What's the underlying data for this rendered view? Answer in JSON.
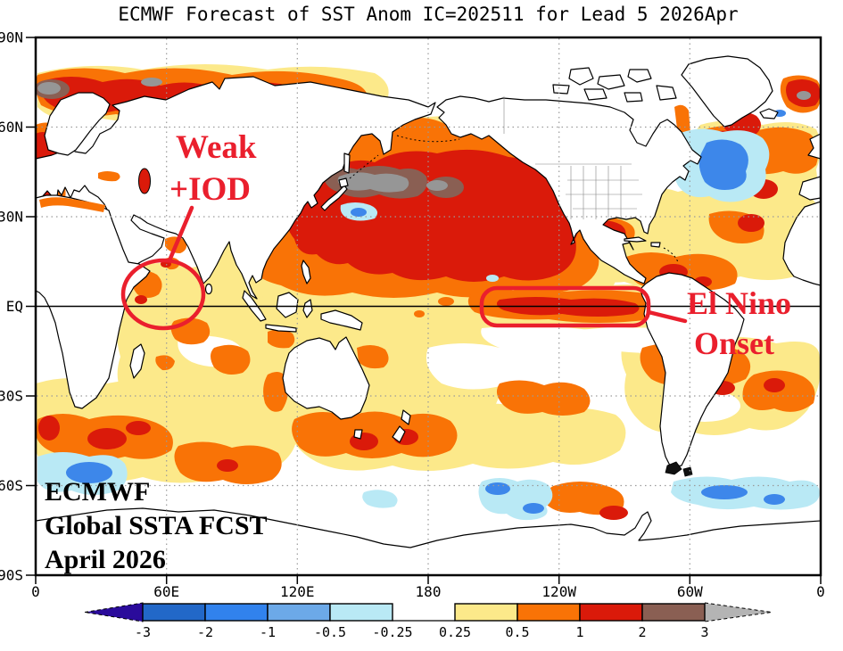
{
  "title": "ECMWF Forecast of SST Anom IC=202511 for Lead 5 2026Apr",
  "y_axis": {
    "labels": [
      "90N",
      "60N",
      "30N",
      "EQ",
      "30S",
      "60S",
      "90S"
    ]
  },
  "x_axis": {
    "labels": [
      "0",
      "60E",
      "120E",
      "180",
      "120W",
      "60W",
      "0"
    ]
  },
  "legend": {
    "tick_labels": [
      "-3",
      "-2",
      "-1",
      "-0.5",
      "-0.25",
      "0.25",
      "0.5",
      "1",
      "2",
      "3"
    ],
    "box_colors": [
      "#2268c8",
      "#3182ed",
      "#6ca9e8",
      "#b9e9f5",
      "#ffffff",
      "#fce98a",
      "#f97306",
      "#da1a0a",
      "#8a5f53"
    ],
    "left_arrow_color": "#2a0b9b",
    "right_arrow_color": "#b4b4b4"
  },
  "annotations": {
    "iod_line1": "Weak",
    "iod_line2": "+IOD",
    "elnino_line1": "El Nino",
    "elnino_line2": "Onset",
    "color": "#ea1f2d"
  },
  "footer": {
    "line1": "ECMWF",
    "line2": "Global SSTA FCST",
    "line3": "April 2026"
  },
  "palette": {
    "below_-3": "#2a0b9b",
    "-3_-2": "#2268c8",
    "-2_-1": "#3182ed",
    "-1_-0.5": "#6ca9e8",
    "-0.5_-0.25": "#b9e9f5",
    "-0.25_0.25": "#ffffff",
    "0.25_0.5": "#fce98a",
    "0.5_1": "#f97306",
    "1_2": "#da1a0a",
    "2_3": "#8a5f53",
    "above_3": "#b4b4b4"
  },
  "chart_data": {
    "type": "heatmap",
    "title": "ECMWF Forecast of SST Anom IC=202511 for Lead 5 2026Apr",
    "projection": "equirectangular world map, Pacific-centered (longitude 0E eastward through 180 back to 0)",
    "x_ticks": [
      "0",
      "60E",
      "120E",
      "180",
      "120W",
      "60W",
      "0"
    ],
    "y_ticks": [
      "90N",
      "60N",
      "30N",
      "EQ",
      "30S",
      "60S",
      "90S"
    ],
    "colorbar_boundaries": [
      -3,
      -2,
      -1,
      -0.5,
      -0.25,
      0.25,
      0.5,
      1,
      2,
      3
    ],
    "colorbar_colors": [
      "#2a0b9b",
      "#2268c8",
      "#3182ed",
      "#6ca9e8",
      "#b9e9f5",
      "#ffffff",
      "#fce98a",
      "#f97306",
      "#da1a0a",
      "#8a5f53",
      "#b4b4b4"
    ],
    "notable_features": [
      {
        "region": "Equatorial central-eastern Pacific stripe (about 170W-80W along EQ)",
        "anomaly": "+0.5 to +2, boxed and labeled El Nino Onset"
      },
      {
        "region": "Central North Pacific 30-50N",
        "anomaly": "+1 to above +3; gray >3 band east of Japan ringed by +2 to +3 brown"
      },
      {
        "region": "Barents / Norwegian Seas and Siberian Arctic coast",
        "anomaly": "+1 to above +3 with small gray >3 patches"
      },
      {
        "region": "Subpolar North Atlantic south of Greenland",
        "anomaly": "cold blob -0.5 to -2"
      },
      {
        "region": "Western equatorial Indian Ocean near Somalia (circled, Weak +IOD)",
        "anomaly": "+0.25 to +1 with small +1 to +2 spots"
      },
      {
        "region": "Northeast Atlantic near Iceland and top-right corner",
        "anomaly": "+1 to above +3"
      },
      {
        "region": "Gulf of Mexico and Gulf Stream region",
        "anomaly": "+1 to +2 cores in +0.5 to +1 band"
      },
      {
        "region": "Southern Ocean 40-60S circumpolar band",
        "anomaly": "patches of +0.5 to +2"
      },
      {
        "region": "Near 60S south of Africa, Ross Sea sector and east of Drake Passage",
        "anomaly": "-0.25 to -2 patches"
      },
      {
        "region": "Mediterranean, Black Sea, Caspian Sea",
        "anomaly": "+0.5 to +2"
      }
    ]
  }
}
